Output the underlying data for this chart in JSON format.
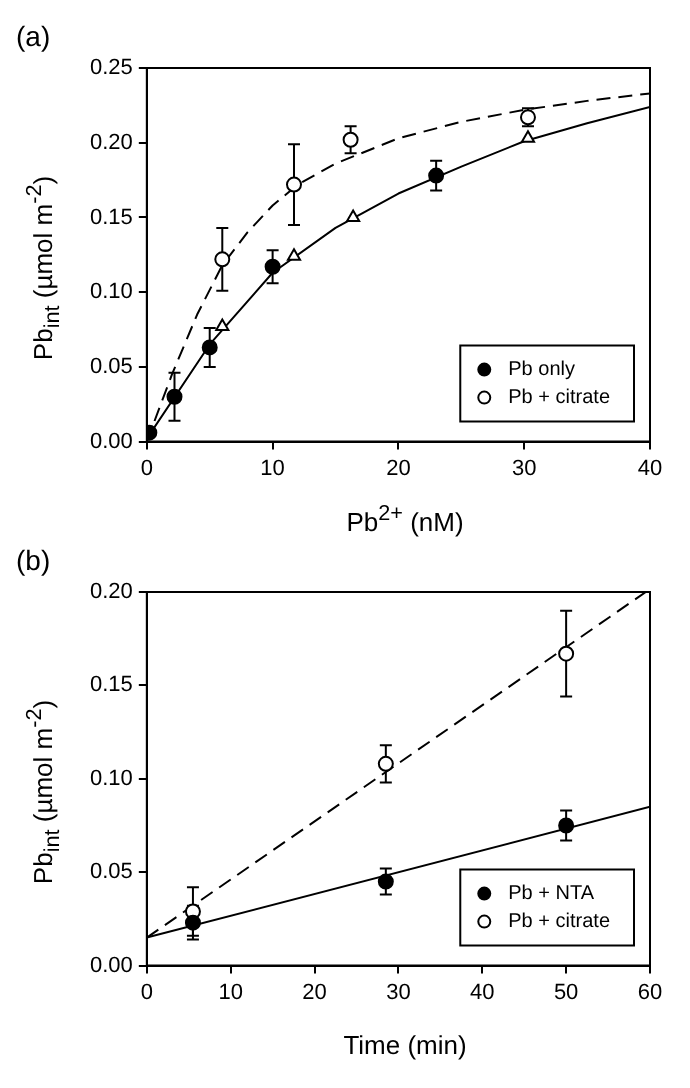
{
  "chart_data": [
    {
      "type": "scatter",
      "title": "(a)",
      "xlabel": "Pb$^{2+}$ (nM)",
      "ylabel": "Pb$_{int}$ (µmol m$^{-2}$)",
      "xlim": [
        0,
        40
      ],
      "xticks": [
        0,
        10,
        20,
        30,
        40
      ],
      "ylim": [
        0,
        0.25
      ],
      "yticks": [
        {
          "value": 0,
          "label": "0.00"
        },
        {
          "value": 0.05,
          "label": "0.05"
        },
        {
          "value": 0.1,
          "label": "0.10"
        },
        {
          "value": 0.15,
          "label": "0.15"
        },
        {
          "value": 0.2,
          "label": "0.20"
        },
        {
          "value": 0.25,
          "label": "0.25"
        }
      ],
      "legend": "bottom right",
      "marker": "circle",
      "series": [
        {
          "name": "Pb only",
          "color": "#000000",
          "x": [
            0.2,
            2.2,
            5,
            10,
            23
          ],
          "values": [
            0.006,
            0.03,
            0.063,
            0.117,
            0.178
          ],
          "errors": [
            null,
            0.016,
            0.013,
            0.011,
            0.01
          ]
        },
        {
          "name": "Pb + citrate",
          "color": "#ffffff",
          "x": [
            6,
            11.7,
            16.2,
            30.3
          ],
          "values": [
            0.122,
            0.172,
            0.202,
            0.217
          ],
          "errors": [
            0.021,
            0.027,
            0.009,
            0.006
          ]
        },
        {
          "color": "#ffffff",
          "marker": "triangle",
          "x": [
            6,
            11.7,
            16.4,
            30.3
          ],
          "values": [
            0.077,
            0.124,
            0.15,
            0.203
          ]
        },
        {
          "type": "line",
          "color": "#000000",
          "marker": "none",
          "line_style": "solid",
          "x": [
            0,
            5,
            10,
            15,
            20,
            25,
            30,
            35,
            40
          ],
          "values": [
            0.002,
            0.065,
            0.113,
            0.143,
            0.166,
            0.184,
            0.201,
            0.213,
            0.224
          ]
        },
        {
          "type": "line",
          "color": "#000000",
          "marker": "none",
          "line_style": "dashed",
          "x": [
            0,
            2,
            4,
            6,
            8,
            10,
            12,
            15,
            20,
            25,
            30,
            35,
            40
          ],
          "values": [
            0.0,
            0.045,
            0.085,
            0.118,
            0.14,
            0.158,
            0.172,
            0.186,
            0.203,
            0.214,
            0.222,
            0.228,
            0.233
          ]
        }
      ]
    },
    {
      "type": "scatter",
      "title": "(b)",
      "xlabel": "Time (min)",
      "ylabel": "Pb$_{int}$ (µmol m$^{-2}$)",
      "xlim": [
        0,
        60
      ],
      "xticks": [
        0,
        10,
        20,
        30,
        40,
        50,
        60
      ],
      "ylim": [
        0,
        0.2
      ],
      "yticks": [
        {
          "value": 0,
          "label": "0.00"
        },
        {
          "value": 0.05,
          "label": "0.05"
        },
        {
          "value": 0.1,
          "label": "0.10"
        },
        {
          "value": 0.15,
          "label": "0.15"
        },
        {
          "value": 0.2,
          "label": "0.20"
        }
      ],
      "legend": "bottom right",
      "marker": "circle",
      "series": [
        {
          "name": "Pb + NTA",
          "color": "#000000",
          "x": [
            5.5,
            28.5,
            50
          ],
          "values": [
            0.023,
            0.045,
            0.075
          ],
          "errors": [
            0.009,
            0.007,
            0.008
          ]
        },
        {
          "name": "Pb + citrate",
          "color": "#ffffff",
          "x": [
            5.5,
            28.5,
            50
          ],
          "values": [
            0.029,
            0.108,
            0.167
          ],
          "errors": [
            0.013,
            0.01,
            0.023
          ]
        },
        {
          "type": "line",
          "color": "#000000",
          "marker": "none",
          "line_style": "solid",
          "x": [
            0,
            60
          ],
          "values": [
            0.015,
            0.085
          ]
        },
        {
          "type": "line",
          "color": "#000000",
          "marker": "none",
          "line_style": "dashed",
          "x": [
            0,
            59.5
          ],
          "values": [
            0.015,
            0.2
          ]
        }
      ]
    }
  ]
}
